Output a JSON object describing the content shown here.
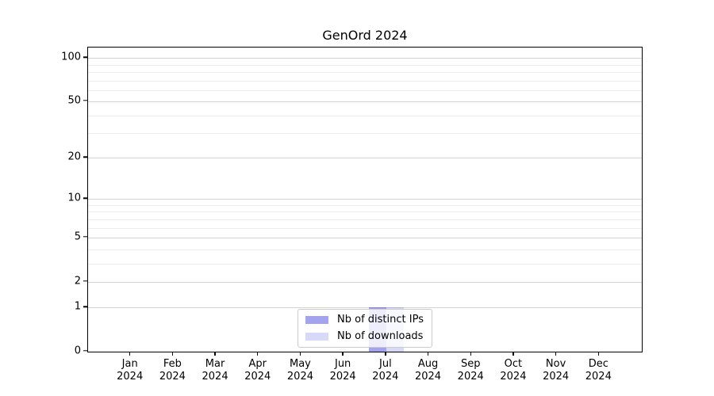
{
  "chart_data": {
    "type": "bar",
    "title": "GenOrd 2024",
    "year_label": "2024",
    "categories": [
      "Jan",
      "Feb",
      "Mar",
      "Apr",
      "May",
      "Jun",
      "Jul",
      "Aug",
      "Sep",
      "Oct",
      "Nov",
      "Dec"
    ],
    "series": [
      {
        "name": "Nb of distinct IPs",
        "color": "#a3a3f0",
        "values": [
          0,
          0,
          0,
          0,
          0,
          0,
          1,
          0,
          0,
          0,
          0,
          0
        ]
      },
      {
        "name": "Nb of downloads",
        "color": "#d8d8f8",
        "values": [
          0,
          0,
          0,
          0,
          0,
          0,
          1,
          0,
          0,
          0,
          0,
          0
        ]
      }
    ],
    "xlabel": "",
    "ylabel": "",
    "yscale": "log1p",
    "yticks": [
      0,
      1,
      2,
      5,
      10,
      20,
      50,
      100
    ],
    "y_minor_ticks": [
      3,
      4,
      6,
      7,
      8,
      9,
      30,
      40,
      60,
      70,
      80,
      90
    ],
    "ylim": [
      0,
      116
    ],
    "grid": "horizontal-major-and-minor",
    "legend_position": "lower center"
  },
  "colors": {
    "background": "#ffffff",
    "spine": "#000000",
    "bar_distinct_ips": "#a3a3f0",
    "bar_downloads": "#d8d8f8",
    "major_grid": "#d6d6d6",
    "minor_grid": "#ededed",
    "legend_border": "#cbcbcb"
  }
}
